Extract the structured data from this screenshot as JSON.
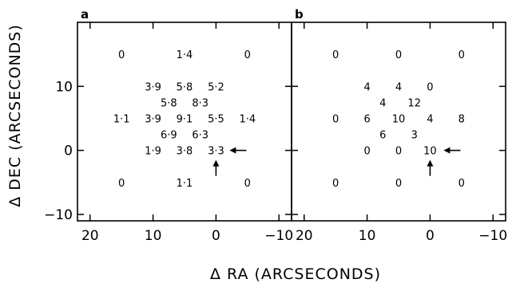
{
  "chart_data": [
    {
      "type": "scatter",
      "panel_label": "a",
      "xlabel": "Δ RA (ARCSECONDS)",
      "ylabel": "Δ DEC (ARCSECONDS)",
      "xlim": [
        22,
        -12
      ],
      "ylim": [
        -11,
        20
      ],
      "x_ticks": [
        20,
        10,
        0,
        -10
      ],
      "y_ticks": [
        10,
        0,
        -10
      ],
      "x_tick_labels": [
        "20",
        "10",
        "0",
        "−10"
      ],
      "y_tick_labels": [
        "10",
        "0",
        "−10"
      ],
      "points": [
        {
          "x": 15,
          "y": 15,
          "label": "0"
        },
        {
          "x": 5,
          "y": 15,
          "label": "1·4"
        },
        {
          "x": -5,
          "y": 15,
          "label": "0"
        },
        {
          "x": 10,
          "y": 10,
          "label": "3·9"
        },
        {
          "x": 5,
          "y": 10,
          "label": "5·8"
        },
        {
          "x": 0,
          "y": 10,
          "label": "5·2"
        },
        {
          "x": 7.5,
          "y": 7.5,
          "label": "5·8"
        },
        {
          "x": 2.5,
          "y": 7.5,
          "label": "8·3"
        },
        {
          "x": 15,
          "y": 5,
          "label": "1·1"
        },
        {
          "x": 10,
          "y": 5,
          "label": "3·9"
        },
        {
          "x": 5,
          "y": 5,
          "label": "9·1"
        },
        {
          "x": 0,
          "y": 5,
          "label": "5·5"
        },
        {
          "x": -5,
          "y": 5,
          "label": "1·4"
        },
        {
          "x": 7.5,
          "y": 2.5,
          "label": "6·9"
        },
        {
          "x": 2.5,
          "y": 2.5,
          "label": "6·3"
        },
        {
          "x": 10,
          "y": 0,
          "label": "1·9"
        },
        {
          "x": 5,
          "y": 0,
          "label": "3·8"
        },
        {
          "x": 0,
          "y": 0,
          "label": "3·3"
        },
        {
          "x": 15,
          "y": -5,
          "label": "0"
        },
        {
          "x": 5,
          "y": -5,
          "label": "1·1"
        },
        {
          "x": -5,
          "y": -5,
          "label": "0"
        }
      ],
      "arrows": [
        {
          "x": 0,
          "y": 0,
          "points_from": "right"
        },
        {
          "x": 0,
          "y": 0,
          "points_from": "below"
        }
      ]
    },
    {
      "type": "scatter",
      "panel_label": "b",
      "xlabel": "Δ RA (ARCSECONDS)",
      "xlim": [
        22,
        -12
      ],
      "ylim": [
        -11,
        20
      ],
      "x_ticks": [
        20,
        10,
        0,
        -10
      ],
      "x_tick_labels": [
        "20",
        "10",
        "0",
        "−10"
      ],
      "points": [
        {
          "x": 15,
          "y": 15,
          "label": "0"
        },
        {
          "x": 5,
          "y": 15,
          "label": "0"
        },
        {
          "x": -5,
          "y": 15,
          "label": "0"
        },
        {
          "x": 10,
          "y": 10,
          "label": "4"
        },
        {
          "x": 5,
          "y": 10,
          "label": "4"
        },
        {
          "x": 0,
          "y": 10,
          "label": "0"
        },
        {
          "x": 7.5,
          "y": 7.5,
          "label": "4"
        },
        {
          "x": 2.5,
          "y": 7.5,
          "label": "12"
        },
        {
          "x": 15,
          "y": 5,
          "label": "0"
        },
        {
          "x": 10,
          "y": 5,
          "label": "6"
        },
        {
          "x": 5,
          "y": 5,
          "label": "10"
        },
        {
          "x": 0,
          "y": 5,
          "label": "4"
        },
        {
          "x": -5,
          "y": 5,
          "label": "8"
        },
        {
          "x": 7.5,
          "y": 2.5,
          "label": "6"
        },
        {
          "x": 2.5,
          "y": 2.5,
          "label": "3"
        },
        {
          "x": 10,
          "y": 0,
          "label": "0"
        },
        {
          "x": 5,
          "y": 0,
          "label": "0"
        },
        {
          "x": 0,
          "y": 0,
          "label": "10"
        },
        {
          "x": 15,
          "y": -5,
          "label": "0"
        },
        {
          "x": 5,
          "y": -5,
          "label": "0"
        },
        {
          "x": -5,
          "y": -5,
          "label": "0"
        }
      ],
      "arrows": [
        {
          "x": 0,
          "y": 0,
          "points_from": "right"
        },
        {
          "x": 0,
          "y": 0,
          "points_from": "below"
        }
      ]
    }
  ]
}
